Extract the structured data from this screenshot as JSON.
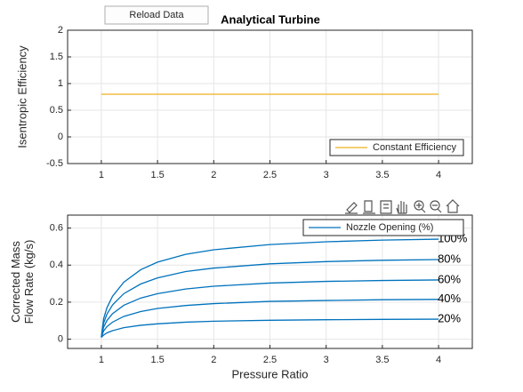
{
  "button": "Reload Data",
  "chart_data": [
    {
      "type": "line",
      "title": "Analytical Turbine",
      "ylabel": "Isentropic Efficiency",
      "xlim": [
        0.7,
        4.3
      ],
      "xticks": [
        1,
        1.5,
        2,
        2.5,
        3,
        3.5,
        4
      ],
      "ylim": [
        -0.5,
        2
      ],
      "yticks": [
        -0.5,
        0,
        0.5,
        1,
        1.5,
        2
      ],
      "grid": true,
      "legend": "southeast",
      "x": [
        1,
        4
      ],
      "series": [
        {
          "name": "Constant Efficiency",
          "color": "#edb120",
          "values": [
            0.8,
            0.8
          ]
        }
      ]
    },
    {
      "type": "line",
      "xlabel": "Pressure Ratio",
      "ylabel": [
        "Corrected Mass",
        "Flow Rate (kg/s)"
      ],
      "xlim": [
        0.7,
        4.3
      ],
      "xticks": [
        1,
        1.5,
        2,
        2.5,
        3,
        3.5,
        4
      ],
      "ylim": [
        -0.05,
        0.67
      ],
      "yticks": [
        0,
        0.2,
        0.4,
        0.6
      ],
      "grid": true,
      "legend": "northeast",
      "legend_title": "Nozzle Opening (%)",
      "color": "#0072bd",
      "x": [
        1,
        1.02,
        1.05,
        1.1,
        1.2,
        1.35,
        1.5,
        1.75,
        2,
        2.5,
        3,
        3.5,
        4
      ],
      "series": [
        {
          "label": "100%",
          "values": [
            0.01,
            0.11,
            0.17,
            0.232,
            0.308,
            0.375,
            0.416,
            0.458,
            0.483,
            0.511,
            0.526,
            0.535,
            0.54
          ]
        },
        {
          "label": "80%",
          "values": [
            0.01,
            0.087,
            0.135,
            0.185,
            0.246,
            0.298,
            0.331,
            0.365,
            0.384,
            0.407,
            0.419,
            0.426,
            0.43
          ]
        },
        {
          "label": "60%",
          "values": [
            0.01,
            0.065,
            0.101,
            0.138,
            0.183,
            0.222,
            0.246,
            0.271,
            0.286,
            0.303,
            0.312,
            0.317,
            0.32
          ]
        },
        {
          "label": "40%",
          "values": [
            0.01,
            0.044,
            0.068,
            0.092,
            0.123,
            0.149,
            0.166,
            0.182,
            0.192,
            0.204,
            0.209,
            0.213,
            0.215
          ]
        },
        {
          "label": "20%",
          "values": [
            0.01,
            0.022,
            0.034,
            0.046,
            0.062,
            0.075,
            0.083,
            0.092,
            0.097,
            0.102,
            0.105,
            0.107,
            0.108
          ]
        }
      ]
    }
  ]
}
